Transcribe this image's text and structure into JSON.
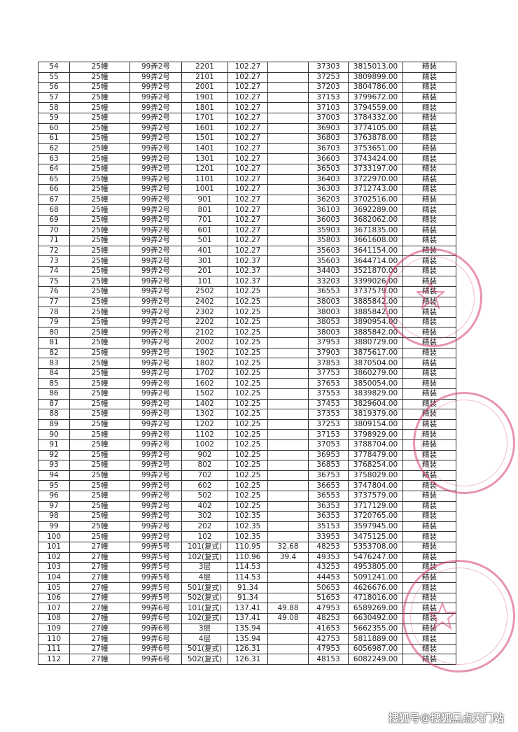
{
  "table": {
    "rows": [
      [
        "54",
        "25幢",
        "99弄2号",
        "2201",
        "102.27",
        "",
        "37303",
        "3815013.00",
        "精装"
      ],
      [
        "55",
        "25幢",
        "99弄2号",
        "2101",
        "102.27",
        "",
        "37253",
        "3809899.00",
        "精装"
      ],
      [
        "56",
        "25幢",
        "99弄2号",
        "2001",
        "102.27",
        "",
        "37203",
        "3804786.00",
        "精装"
      ],
      [
        "57",
        "25幢",
        "99弄2号",
        "1901",
        "102.27",
        "",
        "37153",
        "3799672.00",
        "精装"
      ],
      [
        "58",
        "25幢",
        "99弄2号",
        "1801",
        "102.27",
        "",
        "37103",
        "3794559.00",
        "精装"
      ],
      [
        "59",
        "25幢",
        "99弄2号",
        "1701",
        "102.27",
        "",
        "37003",
        "3784332.00",
        "精装"
      ],
      [
        "60",
        "25幢",
        "99弄2号",
        "1601",
        "102.27",
        "",
        "36903",
        "3774105.00",
        "精装"
      ],
      [
        "61",
        "25幢",
        "99弄2号",
        "1501",
        "102.27",
        "",
        "36803",
        "3763878.00",
        "精装"
      ],
      [
        "62",
        "25幢",
        "99弄2号",
        "1401",
        "102.27",
        "",
        "36703",
        "3753651.00",
        "精装"
      ],
      [
        "63",
        "25幢",
        "99弄2号",
        "1301",
        "102.27",
        "",
        "36603",
        "3743424.00",
        "精装"
      ],
      [
        "64",
        "25幢",
        "99弄2号",
        "1201",
        "102.27",
        "",
        "36503",
        "3733197.00",
        "精装"
      ],
      [
        "65",
        "25幢",
        "99弄2号",
        "1101",
        "102.27",
        "",
        "36403",
        "3722970.00",
        "精装"
      ],
      [
        "66",
        "25幢",
        "99弄2号",
        "1001",
        "102.27",
        "",
        "36303",
        "3712743.00",
        "精装"
      ],
      [
        "67",
        "25幢",
        "99弄2号",
        "901",
        "102.27",
        "",
        "36203",
        "3702516.00",
        "精装"
      ],
      [
        "68",
        "25幢",
        "99弄2号",
        "801",
        "102.27",
        "",
        "36103",
        "3692289.00",
        "精装"
      ],
      [
        "69",
        "25幢",
        "99弄2号",
        "701",
        "102.27",
        "",
        "36003",
        "3682062.00",
        "精装"
      ],
      [
        "70",
        "25幢",
        "99弄2号",
        "601",
        "102.27",
        "",
        "35903",
        "3671835.00",
        "精装"
      ],
      [
        "71",
        "25幢",
        "99弄2号",
        "501",
        "102.27",
        "",
        "35803",
        "3661608.00",
        "精装"
      ],
      [
        "72",
        "25幢",
        "99弄2号",
        "401",
        "102.27",
        "",
        "35603",
        "3641154.00",
        "精装"
      ],
      [
        "73",
        "25幢",
        "99弄2号",
        "301",
        "102.37",
        "",
        "35603",
        "3644714.00",
        "精装"
      ],
      [
        "74",
        "25幢",
        "99弄2号",
        "201",
        "102.37",
        "",
        "34403",
        "3521870.00",
        "精装"
      ],
      [
        "75",
        "25幢",
        "99弄2号",
        "101",
        "102.37",
        "",
        "33203",
        "3399026.00",
        "精装"
      ],
      [
        "76",
        "25幢",
        "99弄2号",
        "2502",
        "102.25",
        "",
        "36553",
        "3737579.00",
        "精装"
      ],
      [
        "77",
        "25幢",
        "99弄2号",
        "2402",
        "102.25",
        "",
        "38003",
        "3885842.00",
        "精装"
      ],
      [
        "78",
        "25幢",
        "99弄2号",
        "2302",
        "102.25",
        "",
        "38003",
        "3885842.00",
        "精装"
      ],
      [
        "79",
        "25幢",
        "99弄2号",
        "2202",
        "102.25",
        "",
        "38053",
        "3890954.00",
        "精装"
      ],
      [
        "80",
        "25幢",
        "99弄2号",
        "2102",
        "102.25",
        "",
        "38003",
        "3885842.00",
        "精装"
      ],
      [
        "81",
        "25幢",
        "99弄2号",
        "2002",
        "102.25",
        "",
        "37953",
        "3880729.00",
        "精装"
      ],
      [
        "82",
        "25幢",
        "99弄2号",
        "1902",
        "102.25",
        "",
        "37903",
        "3875617.00",
        "精装"
      ],
      [
        "83",
        "25幢",
        "99弄2号",
        "1802",
        "102.25",
        "",
        "37853",
        "3870504.00",
        "精装"
      ],
      [
        "84",
        "25幢",
        "99弄2号",
        "1702",
        "102.25",
        "",
        "37753",
        "3860279.00",
        "精装"
      ],
      [
        "85",
        "25幢",
        "99弄2号",
        "1602",
        "102.25",
        "",
        "37653",
        "3850054.00",
        "精装"
      ],
      [
        "86",
        "25幢",
        "99弄2号",
        "1502",
        "102.25",
        "",
        "37553",
        "3839829.00",
        "精装"
      ],
      [
        "87",
        "25幢",
        "99弄2号",
        "1402",
        "102.25",
        "",
        "37453",
        "3829604.00",
        "精装"
      ],
      [
        "88",
        "25幢",
        "99弄2号",
        "1302",
        "102.25",
        "",
        "37353",
        "3819379.00",
        "精装"
      ],
      [
        "89",
        "25幢",
        "99弄2号",
        "1202",
        "102.25",
        "",
        "37253",
        "3809154.00",
        "精装"
      ],
      [
        "90",
        "25幢",
        "99弄2号",
        "1102",
        "102.25",
        "",
        "37153",
        "3798929.00",
        "精装"
      ],
      [
        "91",
        "25幢",
        "99弄2号",
        "1002",
        "102.25",
        "",
        "37053",
        "3788704.00",
        "精装"
      ],
      [
        "92",
        "25幢",
        "99弄2号",
        "902",
        "102.25",
        "",
        "36953",
        "3778479.00",
        "精装"
      ],
      [
        "93",
        "25幢",
        "99弄2号",
        "802",
        "102.25",
        "",
        "36853",
        "3768254.00",
        "精装"
      ],
      [
        "94",
        "25幢",
        "99弄2号",
        "702",
        "102.25",
        "",
        "36753",
        "3758029.00",
        "精装"
      ],
      [
        "95",
        "25幢",
        "99弄2号",
        "602",
        "102.25",
        "",
        "36653",
        "3747804.00",
        "精装"
      ],
      [
        "96",
        "25幢",
        "99弄2号",
        "502",
        "102.25",
        "",
        "36553",
        "3737579.00",
        "精装"
      ],
      [
        "97",
        "25幢",
        "99弄2号",
        "402",
        "102.25",
        "",
        "36353",
        "3717129.00",
        "精装"
      ],
      [
        "98",
        "25幢",
        "99弄2号",
        "302",
        "102.35",
        "",
        "36353",
        "3720765.00",
        "精装"
      ],
      [
        "99",
        "25幢",
        "99弄2号",
        "202",
        "102.35",
        "",
        "35153",
        "3597945.00",
        "精装"
      ],
      [
        "100",
        "25幢",
        "99弄2号",
        "102",
        "102.35",
        "",
        "33953",
        "3475125.00",
        "精装"
      ],
      [
        "101",
        "27幢",
        "99弄5号",
        "101(复式)",
        "110.95",
        "32.68",
        "48253",
        "5353708.00",
        "精装"
      ],
      [
        "102",
        "27幢",
        "99弄5号",
        "102(复式)",
        "110.96",
        "39.4",
        "49353",
        "5476247.00",
        "精装"
      ],
      [
        "103",
        "27幢",
        "99弄5号",
        "3层",
        "114.53",
        "",
        "43253",
        "4953805.00",
        "精装"
      ],
      [
        "104",
        "27幢",
        "99弄5号",
        "4层",
        "114.53",
        "",
        "44453",
        "5091241.00",
        "精装"
      ],
      [
        "105",
        "27幢",
        "99弄5号",
        "501(复式)",
        "91.34",
        "",
        "50653",
        "4626676.00",
        "精装"
      ],
      [
        "106",
        "27幢",
        "99弄5号",
        "502(复式)",
        "91.34",
        "",
        "51653",
        "4718016.00",
        "精装"
      ],
      [
        "107",
        "27幢",
        "99弄6号",
        "101(复式)",
        "137.41",
        "49.88",
        "47953",
        "6589269.00",
        "精装"
      ],
      [
        "108",
        "27幢",
        "99弄6号",
        "102(复式)",
        "137.41",
        "49.08",
        "48253",
        "6630492.00",
        "精装"
      ],
      [
        "109",
        "27幢",
        "99弄6号",
        "3层",
        "135.94",
        "",
        "41653",
        "5662355.00",
        "精装"
      ],
      [
        "110",
        "27幢",
        "99弄6号",
        "4层",
        "135.94",
        "",
        "42753",
        "5811889.00",
        "精装"
      ],
      [
        "111",
        "27幢",
        "99弄6号",
        "501(复式)",
        "126.31",
        "",
        "47953",
        "6056987.00",
        "精装"
      ],
      [
        "112",
        "27幢",
        "99弄6号",
        "502(复式)",
        "126.31",
        "",
        "48153",
        "6082249.00",
        "精装"
      ]
    ]
  },
  "watermark": "搜狐号@搜狐黑点天门站",
  "colors": {
    "stamp": "#d63c6e",
    "text": "#222222"
  }
}
